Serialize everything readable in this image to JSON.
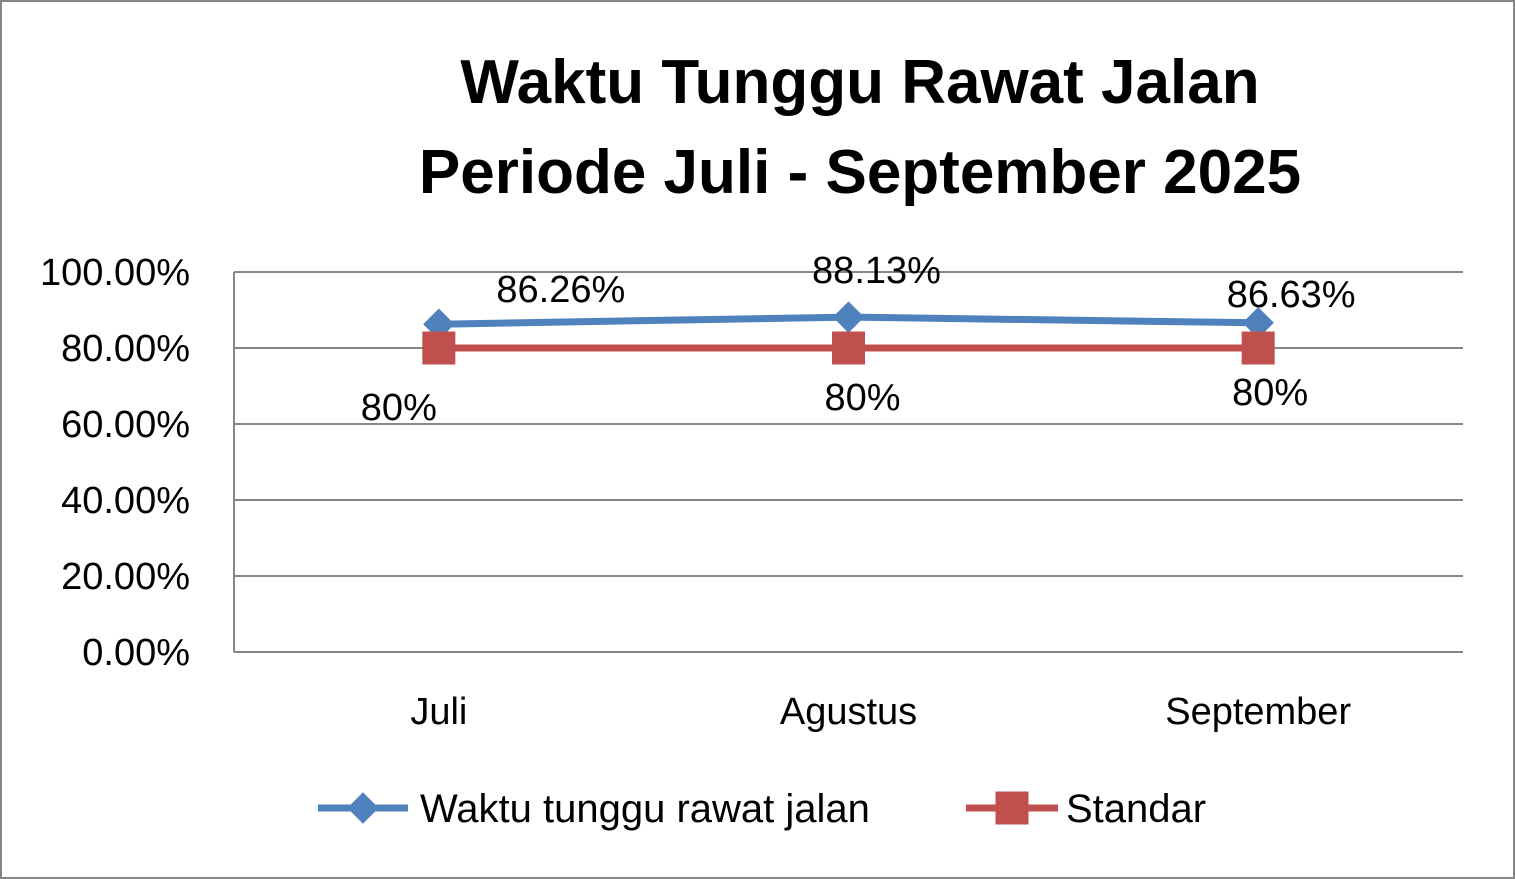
{
  "chart_data": {
    "type": "line",
    "title": "Waktu Tunggu Rawat Jalan",
    "subtitle": "Periode Juli - September 2025",
    "categories": [
      "Juli",
      "Agustus",
      "September"
    ],
    "series": [
      {
        "name": "Waktu tunggu rawat jalan",
        "values": [
          86.26,
          88.13,
          86.63
        ],
        "labels": [
          "86.26%",
          "88.13%",
          "86.63%"
        ],
        "color": "#4F81BD",
        "marker": "diamond"
      },
      {
        "name": "Standar",
        "values": [
          80,
          80,
          80
        ],
        "labels": [
          "80%",
          "80%",
          "80%"
        ],
        "color": "#C0504D",
        "marker": "square"
      }
    ],
    "y_ticks": [
      "0.00%",
      "20.00%",
      "40.00%",
      "60.00%",
      "80.00%",
      "100.00%"
    ],
    "ylim": [
      0,
      100
    ],
    "grid": true,
    "legend_position": "bottom"
  }
}
